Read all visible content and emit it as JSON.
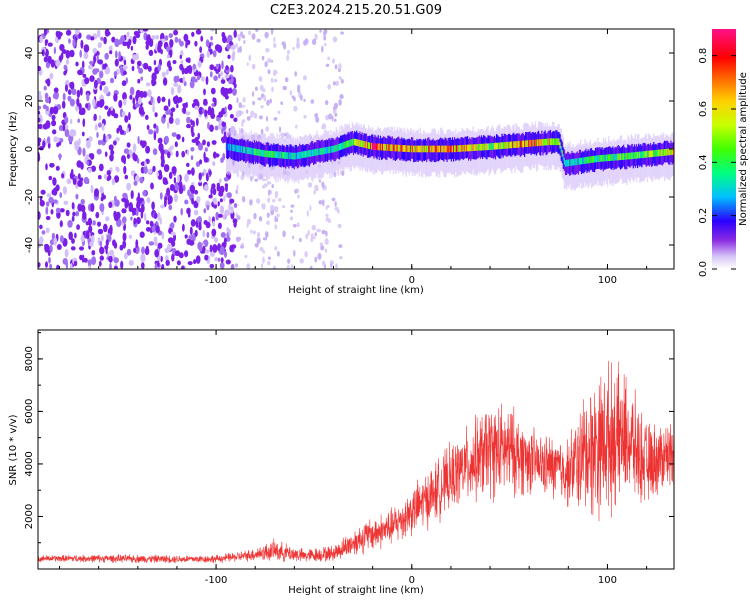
{
  "title": "C2E3.2024.215.20.51.G09",
  "chart_data": [
    {
      "type": "heatmap",
      "xlabel": "Height of straight line (km)",
      "ylabel": "Frequency (Hz)",
      "xlim": [
        -191,
        134
      ],
      "ylim": [
        -50,
        50
      ],
      "x_ticks": [
        -100,
        0,
        100
      ],
      "x_tick_labels": [
        "-100",
        "0",
        "100"
      ],
      "y_ticks": [
        -40,
        -20,
        0,
        20,
        40
      ],
      "y_tick_labels": [
        "-40",
        "-20",
        "0",
        "20",
        "40"
      ],
      "colorbar": {
        "label": "Normalized spectral amplitude",
        "range": [
          0,
          0.9
        ],
        "ticks": [
          0.0,
          0.2,
          0.4,
          0.6,
          0.8
        ],
        "tick_labels": [
          "0.0",
          "0.2",
          "0.4",
          "0.6",
          "0.8"
        ]
      },
      "noise_region": {
        "x": [
          -191,
          -90
        ],
        "density": "high"
      },
      "faint_noise_region": {
        "x": [
          -90,
          -35
        ],
        "density": "low"
      },
      "signal_band": {
        "x": [
          -95,
          -75,
          -60,
          -40,
          -30,
          -20,
          0,
          20,
          40,
          55,
          70,
          75,
          78,
          95,
          110,
          134
        ],
        "center_freq": [
          1,
          -2,
          -3,
          0,
          3,
          1,
          0,
          0,
          1,
          2,
          3,
          3,
          -6,
          -4,
          -3,
          -1
        ],
        "peak_amplitude": [
          0.3,
          0.45,
          0.35,
          0.4,
          0.5,
          0.85,
          0.7,
          0.75,
          0.55,
          0.8,
          0.75,
          0.6,
          0.35,
          0.45,
          0.5,
          0.6
        ]
      }
    },
    {
      "type": "line",
      "xlabel": "Height of straight line (km)",
      "ylabel": "SNR (10 * v/v)",
      "xlim": [
        -191,
        134
      ],
      "ylim": [
        0,
        9100
      ],
      "x_ticks": [
        -100,
        0,
        100
      ],
      "x_tick_labels": [
        "-100",
        "0",
        "100"
      ],
      "y_ticks": [
        2000,
        4000,
        6000,
        8000
      ],
      "y_tick_labels": [
        "2000",
        "4000",
        "6000",
        "8000"
      ],
      "color": "#ee3333",
      "series": [
        {
          "x": [
            -191,
            -160,
            -120,
            -100,
            -85,
            -70,
            -55,
            -40,
            -25,
            -10,
            0,
            10,
            25,
            40,
            50,
            65,
            80,
            90,
            100,
            110,
            120,
            134
          ],
          "y": [
            400,
            400,
            380,
            380,
            500,
            700,
            500,
            600,
            1200,
            1600,
            2200,
            2800,
            3800,
            4500,
            4500,
            4000,
            3700,
            4500,
            5000,
            5000,
            4000,
            4500
          ],
          "spread": [
            120,
            150,
            150,
            150,
            200,
            400,
            250,
            300,
            600,
            700,
            900,
            1100,
            1300,
            1800,
            1700,
            1100,
            1300,
            2500,
            2800,
            2300,
            1500,
            1200
          ]
        }
      ]
    }
  ]
}
